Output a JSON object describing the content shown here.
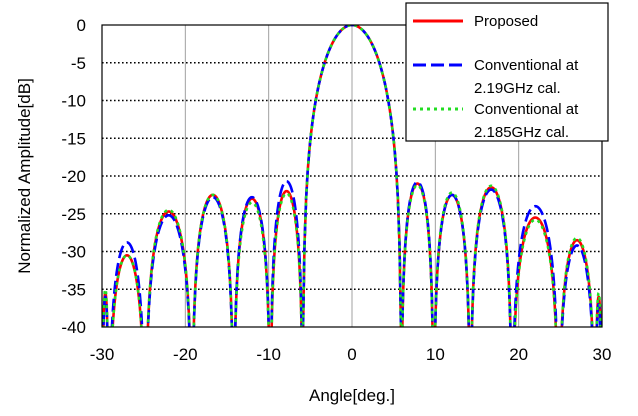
{
  "chart_data": {
    "type": "line",
    "xlabel": "Angle[deg.]",
    "ylabel": "Normalized Amplitude[dB]",
    "xlim": [
      -30,
      30
    ],
    "ylim": [
      -40,
      0
    ],
    "x_ticks": [
      -30,
      -20,
      -10,
      0,
      10,
      20,
      30
    ],
    "y_ticks": [
      0,
      -5,
      -10,
      -15,
      -20,
      -25,
      -30,
      -35,
      -40
    ],
    "x_tick_labels": [
      "-30",
      "-20",
      "-10",
      "0",
      "10",
      "20",
      "30"
    ],
    "y_tick_labels": [
      "0",
      "-5",
      "-10",
      "-15",
      "-20",
      "-25",
      "-30",
      "-35",
      "-40"
    ],
    "grid": true,
    "legend_position": "top-right",
    "series": [
      {
        "name": "Proposed",
        "color": "#ff0000",
        "dash": "solid",
        "lobes": [
          {
            "x0": -30,
            "x1": -29.2,
            "peak": -35.5
          },
          {
            "x0": -29.2,
            "x1": -24.8,
            "peak": -30.5
          },
          {
            "x0": -24.8,
            "x1": -19.2,
            "peak": -24.7
          },
          {
            "x0": -19.2,
            "x1": -14.2,
            "peak": -22.5
          },
          {
            "x0": -14.2,
            "x1": -9.8,
            "peak": -23.0
          },
          {
            "x0": -9.8,
            "x1": -5.9,
            "peak": -22.0
          },
          {
            "x0": -5.9,
            "x1": 5.9,
            "peak": 0
          },
          {
            "x0": 5.9,
            "x1": 9.8,
            "peak": -21.0
          },
          {
            "x0": 9.8,
            "x1": 14.2,
            "peak": -22.5
          },
          {
            "x0": 14.2,
            "x1": 19.2,
            "peak": -21.5
          },
          {
            "x0": 19.2,
            "x1": 24.8,
            "peak": -25.5
          },
          {
            "x0": 24.8,
            "x1": 29.2,
            "peak": -28.5
          },
          {
            "x0": 29.2,
            "x1": 30,
            "peak": -36.0
          }
        ]
      },
      {
        "name": "Conventional at 2.19GHz cal.",
        "legend_lines": [
          "Conventional at",
          "2.19GHz cal."
        ],
        "color": "#0000ff",
        "dash": "dashed",
        "lobes": [
          {
            "x0": -30,
            "x1": -29.2,
            "peak": -36.0
          },
          {
            "x0": -29.2,
            "x1": -24.8,
            "peak": -28.8
          },
          {
            "x0": -24.8,
            "x1": -19.2,
            "peak": -25.2
          },
          {
            "x0": -19.2,
            "x1": -14.2,
            "peak": -22.8
          },
          {
            "x0": -14.2,
            "x1": -9.8,
            "peak": -22.8
          },
          {
            "x0": -9.8,
            "x1": -5.9,
            "peak": -20.7
          },
          {
            "x0": -5.9,
            "x1": 5.9,
            "peak": 0
          },
          {
            "x0": 5.9,
            "x1": 9.8,
            "peak": -20.8
          },
          {
            "x0": 9.8,
            "x1": 14.2,
            "peak": -22.5
          },
          {
            "x0": 14.2,
            "x1": 19.2,
            "peak": -21.8
          },
          {
            "x0": 19.2,
            "x1": 24.8,
            "peak": -24.0
          },
          {
            "x0": 24.8,
            "x1": 29.2,
            "peak": -29.2
          },
          {
            "x0": 29.2,
            "x1": 30,
            "peak": -37.0
          }
        ]
      },
      {
        "name": "Conventional at 2.185GHz cal.",
        "legend_lines": [
          "Conventional at",
          "2.185GHz cal."
        ],
        "color": "#22dd22",
        "dash": "dotted",
        "lobes": [
          {
            "x0": -30,
            "x1": -29.2,
            "peak": -35.0
          },
          {
            "x0": -29.2,
            "x1": -24.8,
            "peak": -30.5
          },
          {
            "x0": -24.8,
            "x1": -19.2,
            "peak": -24.5
          },
          {
            "x0": -19.2,
            "x1": -14.2,
            "peak": -22.5
          },
          {
            "x0": -14.2,
            "x1": -9.8,
            "peak": -23.5
          },
          {
            "x0": -9.8,
            "x1": -5.9,
            "peak": -22.3
          },
          {
            "x0": -5.9,
            "x1": 5.9,
            "peak": 0
          },
          {
            "x0": 5.9,
            "x1": 9.8,
            "peak": -21.2
          },
          {
            "x0": 9.8,
            "x1": 14.2,
            "peak": -22.2
          },
          {
            "x0": 14.2,
            "x1": 19.2,
            "peak": -21.3
          },
          {
            "x0": 19.2,
            "x1": 24.8,
            "peak": -25.8
          },
          {
            "x0": 24.8,
            "x1": 29.2,
            "peak": -28.2
          },
          {
            "x0": 29.2,
            "x1": 30,
            "peak": -35.5
          }
        ]
      }
    ]
  }
}
